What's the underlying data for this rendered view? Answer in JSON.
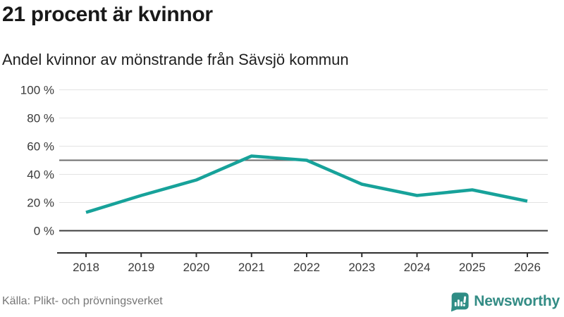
{
  "header": {
    "title": "21 procent är kvinnor",
    "subtitle": "Andel kvinnor av mönstrande från Sävsjö kommun"
  },
  "chart_data": {
    "type": "line",
    "title": "21 procent är kvinnor",
    "subtitle": "Andel kvinnor av mönstrande från Sävsjö kommun",
    "x": [
      "2018",
      "2019",
      "2020",
      "2021",
      "2022",
      "2023",
      "2024",
      "2025",
      "2026"
    ],
    "series": [
      {
        "name": "Andel kvinnor av mönstrande",
        "values": [
          13,
          25,
          36,
          53,
          50,
          33,
          25,
          29,
          21
        ]
      }
    ],
    "ylim": [
      0,
      100
    ],
    "yticks": [
      {
        "value": 0,
        "label": "0 %"
      },
      {
        "value": 20,
        "label": "20 %"
      },
      {
        "value": 40,
        "label": "40 %"
      },
      {
        "value": 60,
        "label": "60 %"
      },
      {
        "value": 80,
        "label": "80 %"
      },
      {
        "value": 100,
        "label": "100 %"
      }
    ],
    "reference_line": {
      "value": 50
    },
    "grid": "horizontal",
    "legend": "none",
    "line_color": "#17a29a"
  },
  "footer": {
    "source": "Källa: Plikt- och prövningsverket",
    "brand": "Newsworthy"
  },
  "colors": {
    "line": "#17a29a",
    "logo_teal": "#2f8d85",
    "brand_text": "#338c85",
    "grid": "#e3e3e3",
    "reference": "#6e6e6e",
    "axis": "#2f2f2f",
    "source_text": "#767676"
  },
  "icons": {
    "logo": "newsworthy-bar-chart-bubble-icon"
  }
}
